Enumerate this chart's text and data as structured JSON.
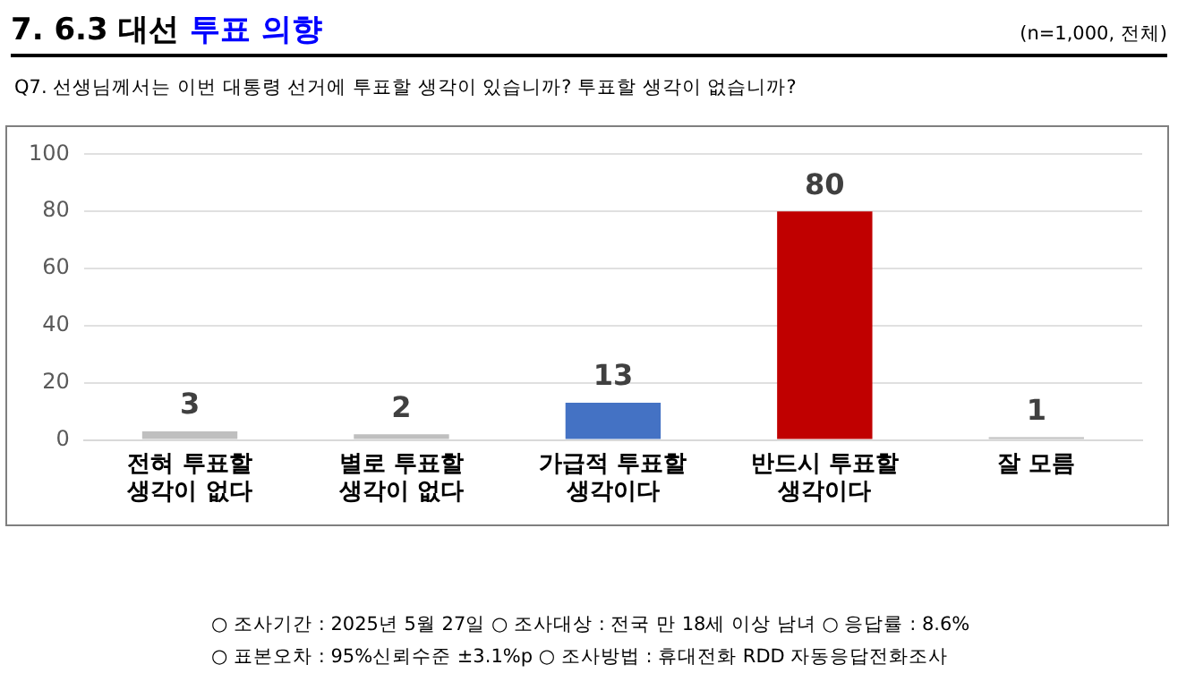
{
  "chart_data": {
    "type": "bar",
    "title": "7. 6.3 대선 투표 의향",
    "subtitle": "(n=1,000, 전체)",
    "annotations": [
      "Q7. 선생님께서는 이번 대통령 선거에 투표할 생각이 있습니까? 투표할 생각이 없습니까?",
      "○ 조사기간 : 2025년 5월 27일 ○ 조사대상 : 전국 만 18세 이상 남녀 ○ 응답률 : 8.6%",
      "○ 표본오차 : 95%신뢰수준 ±3.1%p ○ 조사방법 : 휴대전화 RDD 자동응답전화조사"
    ],
    "categories": [
      "전혀 투표할 생각이 없다",
      "별로 투표할 생각이 없다",
      "가급적 투표할 생각이다",
      "반드시 투표할 생각이다",
      "잘 모름"
    ],
    "values": [
      3,
      2,
      13,
      80,
      1
    ],
    "colors": [
      "#bfbfbf",
      "#bfbfbf",
      "#4472c4",
      "#c00000",
      "#bfbfbf"
    ],
    "ylim": [
      0,
      100
    ],
    "yticks": [
      0,
      20,
      40,
      60,
      80,
      100
    ],
    "grid": "y",
    "data_labels": true,
    "legend": false
  }
}
